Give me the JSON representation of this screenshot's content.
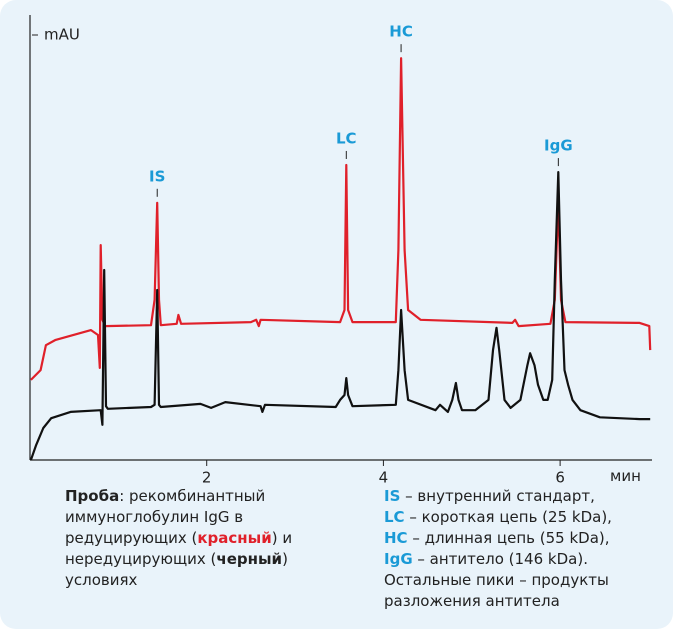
{
  "chart_data": {
    "type": "line",
    "y_label": "mAU",
    "x_label": "мин",
    "xlim": [
      0,
      7.04
    ],
    "ylim": [
      0,
      100
    ],
    "xticks": [
      2,
      4,
      6
    ],
    "series": [
      {
        "name": "красный",
        "color": "#e0202a",
        "x": [
          0.01,
          0.12,
          0.18,
          0.29,
          0.69,
          0.77,
          0.79,
          0.8,
          0.82,
          0.85,
          1.37,
          1.41,
          1.44,
          1.46,
          1.48,
          1.66,
          1.68,
          1.71,
          2.5,
          2.56,
          2.59,
          2.61,
          3.51,
          3.56,
          3.58,
          3.6,
          3.65,
          4.14,
          4.17,
          4.2,
          4.24,
          4.28,
          4.42,
          5.46,
          5.49,
          5.53,
          5.89,
          5.94,
          5.98,
          6.01,
          6.06,
          6.9,
          7.01,
          7.02
        ],
        "values": [
          18.0,
          20.2,
          25.8,
          27.0,
          29.2,
          28.1,
          20.7,
          48.3,
          31.5,
          30.1,
          30.3,
          36.0,
          57.8,
          36.0,
          30.3,
          30.6,
          32.6,
          30.6,
          31.0,
          31.5,
          30.1,
          31.5,
          31.0,
          33.7,
          66.3,
          33.7,
          31.0,
          31.0,
          47.2,
          90.3,
          47.2,
          33.7,
          31.5,
          30.8,
          31.5,
          30.1,
          30.6,
          36.0,
          58.4,
          36.0,
          31.0,
          30.8,
          30.1,
          24.7
        ]
      },
      {
        "name": "черный",
        "color": "#111111",
        "x": [
          0.01,
          0.07,
          0.15,
          0.24,
          0.46,
          0.8,
          0.82,
          0.84,
          0.86,
          0.88,
          1.37,
          1.41,
          1.44,
          1.46,
          1.48,
          1.93,
          2.05,
          2.21,
          2.61,
          2.63,
          2.66,
          3.46,
          3.51,
          3.56,
          3.58,
          3.6,
          3.65,
          4.14,
          4.17,
          4.2,
          4.24,
          4.28,
          4.59,
          4.64,
          4.73,
          4.78,
          4.82,
          4.85,
          4.89,
          5.04,
          5.19,
          5.24,
          5.28,
          5.31,
          5.37,
          5.44,
          5.55,
          5.63,
          5.66,
          5.71,
          5.75,
          5.81,
          5.86,
          5.91,
          5.94,
          5.98,
          6.01,
          6.05,
          6.09,
          6.14,
          6.23,
          6.45,
          6.9,
          7.02
        ],
        "values": [
          0.0,
          3.4,
          7.2,
          9.4,
          10.8,
          11.2,
          7.9,
          42.7,
          12.1,
          11.5,
          11.9,
          12.4,
          38.2,
          12.4,
          11.9,
          12.6,
          11.7,
          13.0,
          12.1,
          10.8,
          12.4,
          11.9,
          13.5,
          14.6,
          18.4,
          14.6,
          12.1,
          12.4,
          20.2,
          33.7,
          20.2,
          13.5,
          11.2,
          12.4,
          10.8,
          13.5,
          17.3,
          13.5,
          11.2,
          11.2,
          13.5,
          24.7,
          29.7,
          24.7,
          13.5,
          11.7,
          13.5,
          21.3,
          24.0,
          21.3,
          16.9,
          13.5,
          13.5,
          18.0,
          40.4,
          64.7,
          40.4,
          20.2,
          16.9,
          13.5,
          11.2,
          9.6,
          9.2,
          9.2
        ]
      }
    ],
    "annotations": [
      {
        "text": "IS",
        "x": 1.44,
        "y": 57.8
      },
      {
        "text": "LC",
        "x": 3.58,
        "y": 66.3
      },
      {
        "text": "HC",
        "x": 4.2,
        "y": 90.3
      },
      {
        "text": "IgG",
        "x": 5.98,
        "y": 64.7
      }
    ],
    "sample": {
      "label": "Проба",
      "text_1": ": рекомбинантный иммуноглобулин IgG в редуцирующих (",
      "red": "красный",
      "text_2": ") и нередуцирующих (",
      "black": "черный",
      "text_3": ") условиях"
    },
    "legend": [
      {
        "key": "IS",
        "text": " – внутренний стандарт,"
      },
      {
        "key": "LC",
        "text": " – короткая цепь (25 kDa),"
      },
      {
        "key": "HC",
        "text": " – длинная цепь (55 kDa),"
      },
      {
        "key": "IgG",
        "text": " – антитело (146 kDa)."
      }
    ],
    "legend_note": "Остальные пики – продукты разложения антитела"
  }
}
